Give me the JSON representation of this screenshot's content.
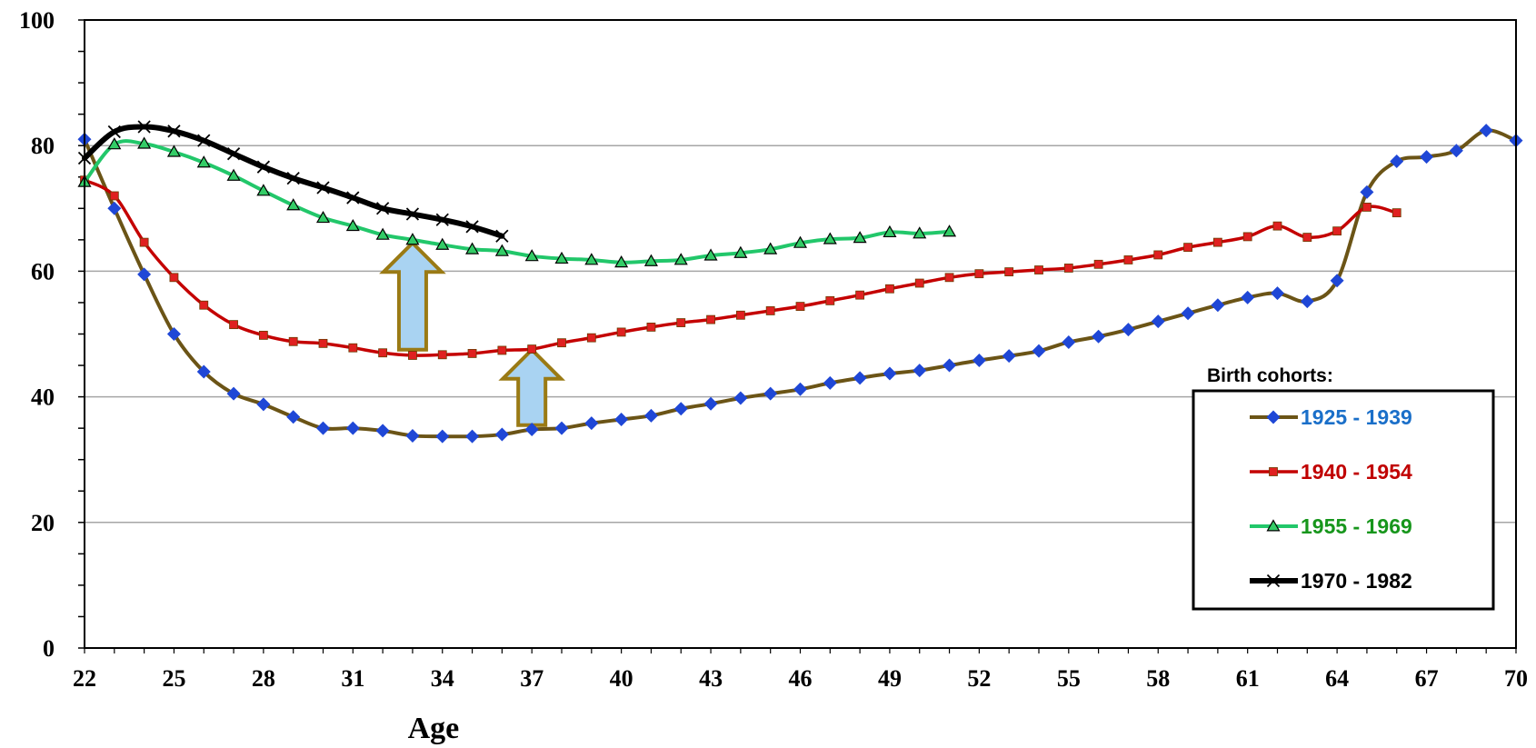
{
  "chart_data": {
    "type": "line",
    "xlabel": "Age",
    "ylabel": "",
    "title": "",
    "xlim": [
      22,
      70
    ],
    "ylim": [
      0,
      100
    ],
    "xticks": [
      22,
      25,
      28,
      31,
      34,
      37,
      40,
      43,
      46,
      49,
      52,
      55,
      58,
      61,
      64,
      67,
      70
    ],
    "yticks": [
      0,
      20,
      40,
      60,
      80,
      100
    ],
    "grid": "horizontal",
    "legend_title": "Birth cohorts:",
    "legend_position": "bottom-right",
    "series": [
      {
        "name": "1925 - 1939",
        "line_color": "#6b5416",
        "marker": "diamond",
        "marker_color": "#1f47d6",
        "label_color": "#1a6fc9",
        "x": [
          22,
          23,
          24,
          25,
          26,
          27,
          28,
          29,
          30,
          31,
          32,
          33,
          34,
          35,
          36,
          37,
          38,
          39,
          40,
          41,
          42,
          43,
          44,
          45,
          46,
          47,
          48,
          49,
          50,
          51,
          52,
          53,
          54,
          55,
          56,
          57,
          58,
          59,
          60,
          61,
          62,
          63,
          64,
          65,
          66,
          67,
          68,
          69,
          70
        ],
        "y": [
          81,
          70,
          59.5,
          50,
          44,
          40.5,
          38.8,
          36.8,
          35,
          35,
          34.6,
          33.8,
          33.7,
          33.7,
          34,
          34.8,
          35,
          35.8,
          36.4,
          37,
          38.1,
          38.9,
          39.8,
          40.5,
          41.2,
          42.2,
          43,
          43.7,
          44.2,
          45,
          45.8,
          46.5,
          47.3,
          48.7,
          49.6,
          50.7,
          52,
          53.3,
          54.6,
          55.8,
          56.5,
          55.2,
          58.5,
          72.6,
          77.5,
          78.2,
          79.2,
          82.4,
          80.8
        ]
      },
      {
        "name": "1940 - 1954",
        "line_color": "#c40000",
        "marker": "square",
        "marker_color": "#e02020",
        "label_color": "#c00000",
        "x": [
          22,
          23,
          24,
          25,
          26,
          27,
          28,
          29,
          30,
          31,
          32,
          33,
          34,
          35,
          36,
          37,
          38,
          39,
          40,
          41,
          42,
          43,
          44,
          45,
          46,
          47,
          48,
          49,
          50,
          51,
          52,
          53,
          54,
          55,
          56,
          57,
          58,
          59,
          60,
          61,
          62,
          63,
          64,
          65,
          66
        ],
        "y": [
          74.5,
          72,
          64.6,
          59,
          54.6,
          51.5,
          49.8,
          48.8,
          48.5,
          47.8,
          47,
          46.6,
          46.7,
          46.9,
          47.4,
          47.6,
          48.6,
          49.4,
          50.3,
          51.1,
          51.8,
          52.3,
          53,
          53.7,
          54.4,
          55.3,
          56.2,
          57.2,
          58.1,
          59,
          59.6,
          59.9,
          60.2,
          60.5,
          61.1,
          61.8,
          62.6,
          63.8,
          64.6,
          65.5,
          67.2,
          65.4,
          66.4,
          70.2,
          69.3
        ]
      },
      {
        "name": "1955 - 1969",
        "line_color": "#22c76a",
        "marker": "triangle",
        "marker_color": "#33cc66",
        "label_color": "#17961c",
        "x": [
          22,
          23,
          24,
          25,
          26,
          27,
          28,
          29,
          30,
          31,
          32,
          33,
          34,
          35,
          36,
          37,
          38,
          39,
          40,
          41,
          42,
          43,
          44,
          45,
          46,
          47,
          48,
          49,
          50,
          51
        ],
        "y": [
          74.2,
          80.2,
          80.3,
          79,
          77.3,
          75.2,
          72.8,
          70.5,
          68.5,
          67.2,
          65.8,
          65,
          64.2,
          63.5,
          63.2,
          62.4,
          62,
          61.8,
          61.4,
          61.6,
          61.8,
          62.5,
          62.9,
          63.5,
          64.5,
          65.1,
          65.3,
          66.2,
          66,
          66.3
        ]
      },
      {
        "name": "1970 - 1982",
        "line_color": "#000000",
        "marker": "x",
        "marker_color": "#000000",
        "label_color": "#000000",
        "x": [
          22,
          23,
          24,
          25,
          26,
          27,
          28,
          29,
          30,
          31,
          32,
          33,
          34,
          35,
          36
        ],
        "y": [
          78,
          82.2,
          83,
          82.3,
          80.8,
          78.7,
          76.6,
          74.8,
          73.3,
          71.7,
          70,
          69.1,
          68.2,
          67.1,
          65.6
        ]
      }
    ],
    "annotations": [
      {
        "type": "arrow-up",
        "x": 33,
        "y_from": 47.5,
        "y_to": 64.5
      },
      {
        "type": "arrow-up",
        "x": 37,
        "y_from": 35.5,
        "y_to": 47.5
      }
    ]
  }
}
